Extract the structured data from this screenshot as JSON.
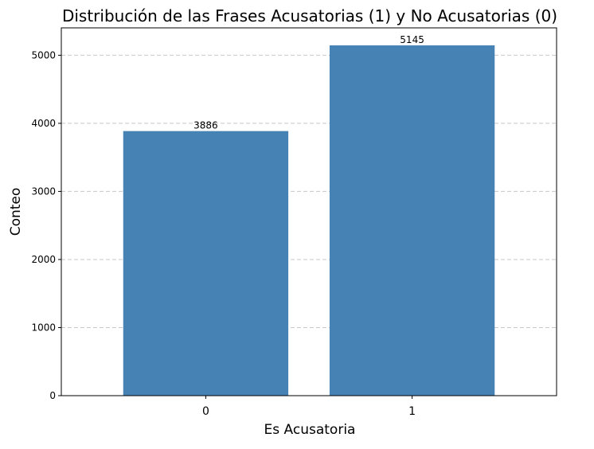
{
  "chart_data": {
    "type": "bar",
    "title": "Distribución de las Frases Acusatorias (1) y No Acusatorias (0)",
    "xlabel": "Es Acusatoria",
    "ylabel": "Conteo",
    "categories": [
      "0",
      "1"
    ],
    "values": [
      3886,
      5145
    ],
    "data_labels": [
      "3886",
      "5145"
    ],
    "ylim": [
      0,
      5402
    ],
    "yticks": [
      0,
      1000,
      2000,
      3000,
      4000,
      5000
    ],
    "ytick_labels": [
      "0",
      "1000",
      "2000",
      "3000",
      "4000",
      "5000"
    ],
    "grid": "y-dashed",
    "bar_color": "#4682b4",
    "grid_color": "#c8c8c8"
  }
}
